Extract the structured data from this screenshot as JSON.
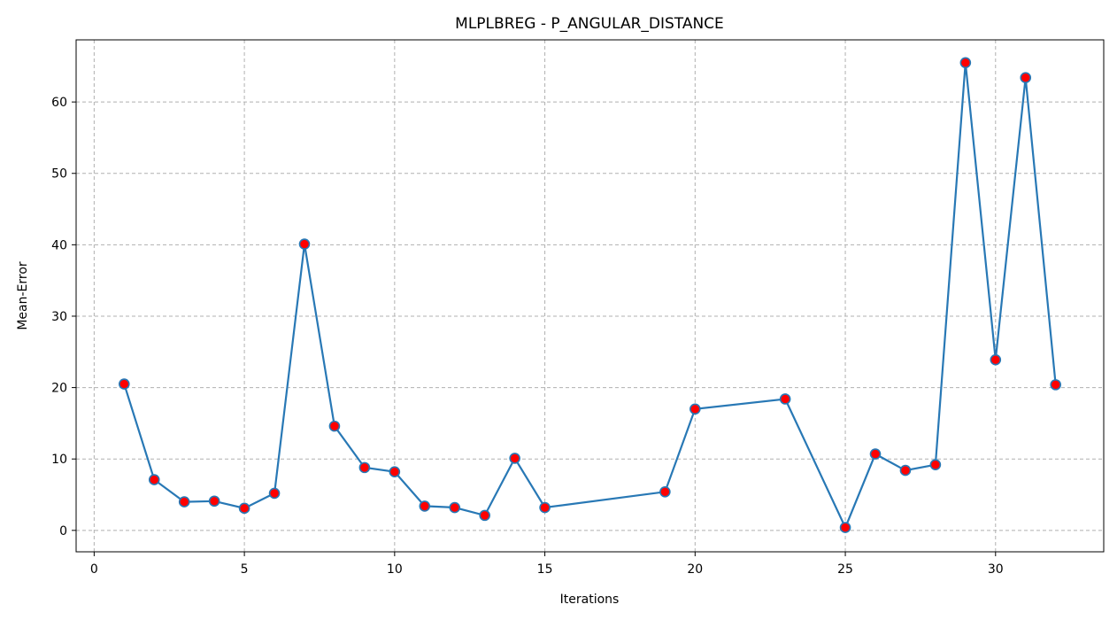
{
  "chart_data": {
    "type": "line",
    "title": "MLPLBREG - P_ANGULAR_DISTANCE",
    "xlabel": "Iterations",
    "ylabel": "Mean-Error",
    "xlim": [
      -0.6,
      33.6
    ],
    "ylim": [
      -3.0,
      68.7
    ],
    "xticks": [
      0,
      5,
      10,
      15,
      20,
      25,
      30
    ],
    "yticks": [
      0,
      10,
      20,
      30,
      40,
      50,
      60
    ],
    "grid": true,
    "line_color": "#2878b5",
    "marker_color": "#ff0000",
    "series": [
      {
        "x": [
          1,
          2,
          3,
          4,
          5,
          6,
          7,
          8,
          9,
          10,
          11,
          12,
          13,
          14,
          15,
          19,
          20,
          23,
          25,
          26,
          27,
          28,
          29,
          30,
          31,
          32
        ],
        "y": [
          20.5,
          7.1,
          4.0,
          4.1,
          3.1,
          5.2,
          40.1,
          14.6,
          8.8,
          8.2,
          3.4,
          3.2,
          2.1,
          10.1,
          3.2,
          5.4,
          17.0,
          18.4,
          0.4,
          10.7,
          8.4,
          9.2,
          65.5,
          23.9,
          63.4,
          20.4
        ]
      }
    ]
  }
}
